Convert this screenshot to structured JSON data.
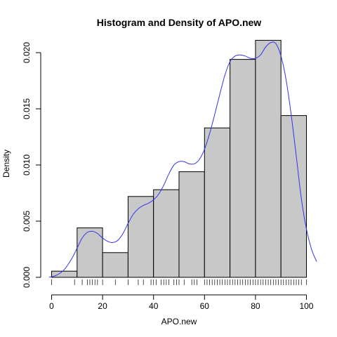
{
  "chart_data": {
    "type": "bar",
    "title": "Histogram and Density of APO.new",
    "xlabel": "APO.new",
    "ylabel": "Density",
    "xlim": [
      -4,
      104
    ],
    "ylim": [
      -0.00075,
      0.021
    ],
    "x_ticks": [
      0,
      20,
      40,
      60,
      80,
      100
    ],
    "x_tick_labels": [
      "0",
      "20",
      "40",
      "60",
      "80",
      "100"
    ],
    "y_ticks": [
      0.0,
      0.005,
      0.01,
      0.015,
      0.02
    ],
    "y_tick_labels": [
      "0.000",
      "0.005",
      "0.010",
      "0.015",
      "0.020"
    ],
    "grid": false,
    "bins": [
      {
        "start": 0,
        "end": 10,
        "density": 0.00055
      },
      {
        "start": 10,
        "end": 20,
        "density": 0.0044
      },
      {
        "start": 20,
        "end": 30,
        "density": 0.0022
      },
      {
        "start": 30,
        "end": 40,
        "density": 0.0072
      },
      {
        "start": 40,
        "end": 50,
        "density": 0.0078
      },
      {
        "start": 50,
        "end": 60,
        "density": 0.0094
      },
      {
        "start": 60,
        "end": 70,
        "density": 0.0133
      },
      {
        "start": 70,
        "end": 80,
        "density": 0.0194
      },
      {
        "start": 80,
        "end": 90,
        "density": 0.0211
      },
      {
        "start": 90,
        "end": 100,
        "density": 0.0144
      }
    ],
    "density_curve": {
      "x": [
        -1,
        2,
        5,
        8,
        10,
        12,
        14,
        16,
        18,
        20,
        22,
        24,
        26,
        28,
        30,
        32,
        34,
        36,
        38,
        40,
        42,
        44,
        46,
        48,
        50,
        52,
        54,
        56,
        58,
        60,
        62,
        64,
        66,
        68,
        70,
        72,
        74,
        76,
        78,
        80,
        82,
        84,
        86,
        88,
        90,
        92,
        94,
        96,
        98,
        100,
        102,
        104
      ],
      "y": [
        0.0,
        0.0002,
        0.0007,
        0.0017,
        0.0026,
        0.0035,
        0.004,
        0.0041,
        0.0039,
        0.0035,
        0.0032,
        0.0031,
        0.0033,
        0.0039,
        0.0048,
        0.0056,
        0.0061,
        0.0064,
        0.0066,
        0.0069,
        0.0074,
        0.0082,
        0.0092,
        0.01,
        0.0103,
        0.0103,
        0.0101,
        0.0101,
        0.0105,
        0.0114,
        0.0128,
        0.0145,
        0.0163,
        0.018,
        0.0192,
        0.0197,
        0.0198,
        0.0197,
        0.0195,
        0.0195,
        0.0198,
        0.0205,
        0.0209,
        0.0208,
        0.0197,
        0.0176,
        0.0145,
        0.0108,
        0.007,
        0.0043,
        0.0025,
        0.0014
      ]
    },
    "rug": [
      0,
      9,
      12,
      14,
      15,
      16,
      17,
      18,
      20,
      25,
      30,
      34,
      36,
      39,
      40,
      41,
      43,
      44,
      45,
      46,
      48,
      49,
      50,
      52,
      55,
      56,
      57,
      60,
      61,
      62,
      63,
      64,
      65,
      66,
      67,
      68,
      69,
      70,
      71,
      72,
      73,
      74,
      75,
      76,
      77,
      78,
      79,
      80,
      81,
      82,
      83,
      84,
      85,
      86,
      87,
      88,
      89,
      90,
      91,
      92,
      93,
      94,
      95,
      96,
      97,
      98,
      100
    ],
    "colors": {
      "bar_fill": "#c8c8c8",
      "bar_stroke": "#000000",
      "density_line": "#3333ee",
      "rug": "#000000"
    }
  }
}
